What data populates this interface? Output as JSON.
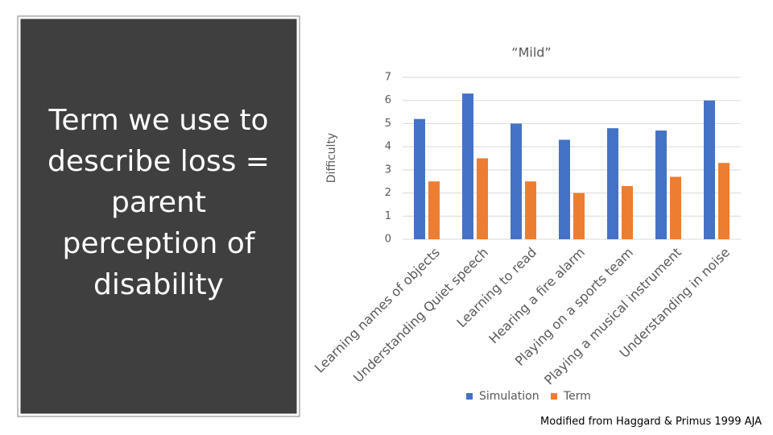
{
  "slide_text": "Term we use to describe loss = parent perception of disability",
  "source": "Modified from Haggard & Primus 1999 AJA",
  "chart_data": {
    "type": "bar",
    "title": "“Mild”",
    "y_label": "Difficulty",
    "categories": [
      "Learning names of objects",
      "Understanding Quiet speech",
      "Learning to read",
      "Hearing a fire alarm",
      "Playing on a sports team",
      "Playing a musical instrument",
      "Understanding in noise"
    ],
    "series": [
      {
        "name": "Simulation",
        "color": "#4472c4",
        "values": [
          5.2,
          6.3,
          5.0,
          4.3,
          4.8,
          4.7,
          6.0
        ]
      },
      {
        "name": "Term",
        "color": "#ed7d31",
        "values": [
          2.5,
          3.5,
          2.5,
          2.0,
          2.3,
          2.7,
          3.3
        ]
      }
    ],
    "ylim": [
      0,
      7
    ],
    "yticks": [
      0,
      1,
      2,
      3,
      4,
      5,
      6,
      7
    ],
    "grid": true,
    "legend": "bottom"
  }
}
